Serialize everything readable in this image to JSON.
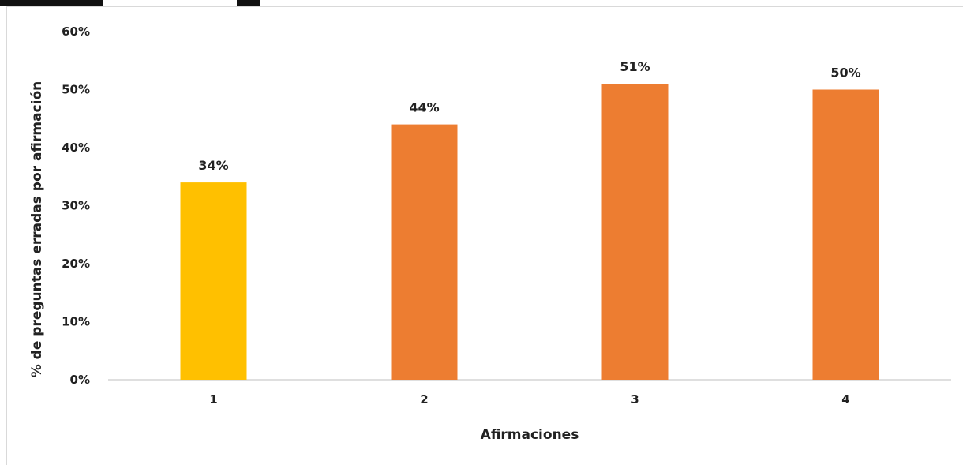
{
  "chart_data": {
    "type": "bar",
    "categories": [
      "1",
      "2",
      "3",
      "4"
    ],
    "values": [
      34,
      44,
      51,
      50
    ],
    "value_labels": [
      "34%",
      "44%",
      "51%",
      "50%"
    ],
    "bar_colors": [
      "#FFC000",
      "#ED7D31",
      "#ED7D31",
      "#ED7D31"
    ],
    "xlabel": "Afirmaciones",
    "ylabel": "% de preguntas erradas por afirmación",
    "ylim": [
      0,
      60
    ],
    "yticks": [
      0,
      10,
      20,
      30,
      40,
      50,
      60
    ],
    "ytick_labels": [
      "0%",
      "10%",
      "20%",
      "30%",
      "40%",
      "50%",
      "60%"
    ],
    "grid": false,
    "legend": "none"
  }
}
